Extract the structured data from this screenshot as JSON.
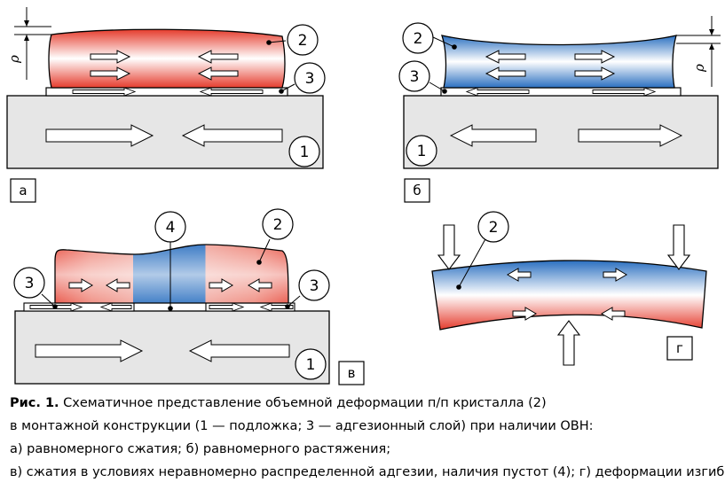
{
  "labels": {
    "substrate": "1",
    "crystal": "2",
    "adhesive": "3",
    "voids": "4",
    "rho": "ρ"
  },
  "panels": {
    "a": "а",
    "b": "б",
    "v": "в",
    "g": "г"
  },
  "colors": {
    "compression": "#e53c2d",
    "tension": "#2a6fc0",
    "substrate": "#e6e6e6"
  },
  "caption": {
    "fig_label": "Рис. 1.",
    "line1": "Схематичное представление объемной деформации п/п кристалла (2)",
    "line2": "в монтажной конструкции (1 — подложка; 3 — адгезионный слой) при наличии ОВН:",
    "line3": "а) равномерного сжатия; б) равномерного растяжения;",
    "line4": "в) сжатия в условиях неравномерно распределенной адгезии, наличия пустот (4); г) деформации изгиба"
  }
}
